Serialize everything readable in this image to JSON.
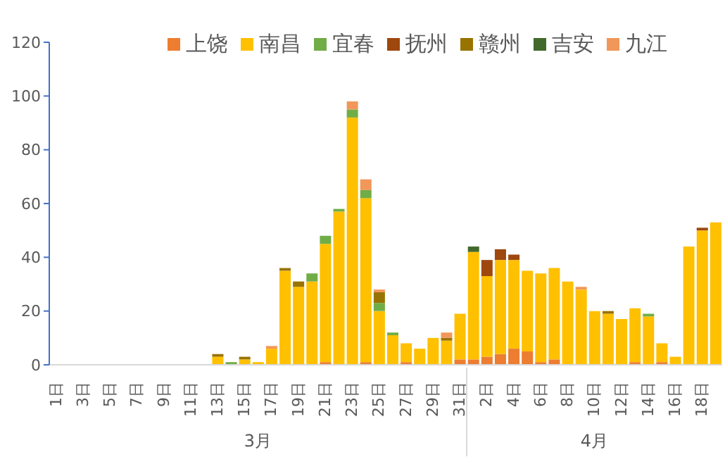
{
  "chart_data": {
    "type": "bar",
    "stacked": true,
    "categories": [
      "1日",
      null,
      "3日",
      null,
      "5日",
      null,
      "7日",
      null,
      "9日",
      null,
      "11日",
      null,
      "13日",
      null,
      "15日",
      null,
      "17日",
      null,
      "19日",
      null,
      "21日",
      null,
      "23日",
      null,
      "25日",
      null,
      "27日",
      null,
      "29日",
      null,
      "31日",
      null,
      "2日",
      null,
      "4日",
      null,
      "6日",
      null,
      "8日",
      null,
      "10日",
      null,
      "12日",
      null,
      "14日",
      null,
      "16日",
      null,
      "18日",
      null
    ],
    "series": [
      {
        "name": "上饶",
        "color": "#ed7d31",
        "values": [
          0,
          0,
          0,
          0,
          0,
          0,
          0,
          0,
          0,
          0,
          0,
          0,
          0,
          0,
          0,
          0,
          0,
          0,
          0,
          0,
          1,
          0,
          0,
          1,
          0,
          0,
          1,
          0,
          0,
          0,
          2,
          2,
          3,
          4,
          6,
          5,
          1,
          2,
          0,
          0,
          0,
          0,
          0,
          1,
          0,
          1,
          0,
          0,
          0,
          0
        ]
      },
      {
        "name": "南昌",
        "color": "#ffc000",
        "values": [
          0,
          0,
          0,
          0,
          0,
          0,
          0,
          0,
          0,
          0,
          0,
          0,
          3,
          0,
          2,
          1,
          6,
          35,
          29,
          31,
          44,
          57,
          92,
          61,
          20,
          11,
          7,
          6,
          10,
          9,
          17,
          40,
          30,
          35,
          33,
          30,
          33,
          34,
          31,
          28,
          20,
          19,
          17,
          20,
          18,
          7,
          3,
          44,
          50,
          53
        ]
      },
      {
        "name": "宜春",
        "color": "#70ad47",
        "values": [
          0,
          0,
          0,
          0,
          0,
          0,
          0,
          0,
          0,
          0,
          0,
          0,
          0,
          1,
          0,
          0,
          0,
          0,
          0,
          3,
          3,
          1,
          3,
          3,
          3,
          1,
          0,
          0,
          0,
          0,
          0,
          0,
          0,
          0,
          0,
          0,
          0,
          0,
          0,
          0,
          0,
          0,
          0,
          0,
          1,
          0,
          0,
          0,
          0,
          0
        ]
      },
      {
        "name": "抚州",
        "color": "#9e480e",
        "values": [
          0,
          0,
          0,
          0,
          0,
          0,
          0,
          0,
          0,
          0,
          0,
          0,
          0,
          0,
          0,
          0,
          0,
          0,
          0,
          0,
          0,
          0,
          0,
          0,
          0,
          0,
          0,
          0,
          0,
          0,
          0,
          0,
          6,
          4,
          2,
          0,
          0,
          0,
          0,
          0,
          0,
          0,
          0,
          0,
          0,
          0,
          0,
          0,
          1,
          0
        ]
      },
      {
        "name": "赣州",
        "color": "#997300",
        "values": [
          0,
          0,
          0,
          0,
          0,
          0,
          0,
          0,
          0,
          0,
          0,
          0,
          1,
          0,
          1,
          0,
          0,
          1,
          2,
          0,
          0,
          0,
          0,
          0,
          4,
          0,
          0,
          0,
          0,
          1,
          0,
          0,
          0,
          0,
          0,
          0,
          0,
          0,
          0,
          0,
          0,
          1,
          0,
          0,
          0,
          0,
          0,
          0,
          0,
          0
        ]
      },
      {
        "name": "吉安",
        "color": "#43682b",
        "values": [
          0,
          0,
          0,
          0,
          0,
          0,
          0,
          0,
          0,
          0,
          0,
          0,
          0,
          0,
          0,
          0,
          0,
          0,
          0,
          0,
          0,
          0,
          0,
          0,
          0,
          0,
          0,
          0,
          0,
          0,
          0,
          2,
          0,
          0,
          0,
          0,
          0,
          0,
          0,
          0,
          0,
          0,
          0,
          0,
          0,
          0,
          0,
          0,
          0,
          0
        ]
      },
      {
        "name": "九江",
        "color": "#f1975a",
        "values": [
          0,
          0,
          0,
          0,
          0,
          0,
          0,
          0,
          0,
          0,
          0,
          0,
          0,
          0,
          0,
          0,
          1,
          0,
          0,
          0,
          0,
          0,
          3,
          4,
          1,
          0,
          0,
          0,
          0,
          2,
          0,
          0,
          0,
          0,
          0,
          0,
          0,
          0,
          0,
          1,
          0,
          0,
          0,
          0,
          0,
          0,
          0,
          0,
          0,
          0
        ]
      }
    ],
    "ylim": [
      0,
      120
    ],
    "yticks": [
      0,
      20,
      40,
      60,
      80,
      100,
      120
    ],
    "grid": false,
    "legend": "top",
    "annotations": [
      "3月",
      "4月"
    ]
  }
}
